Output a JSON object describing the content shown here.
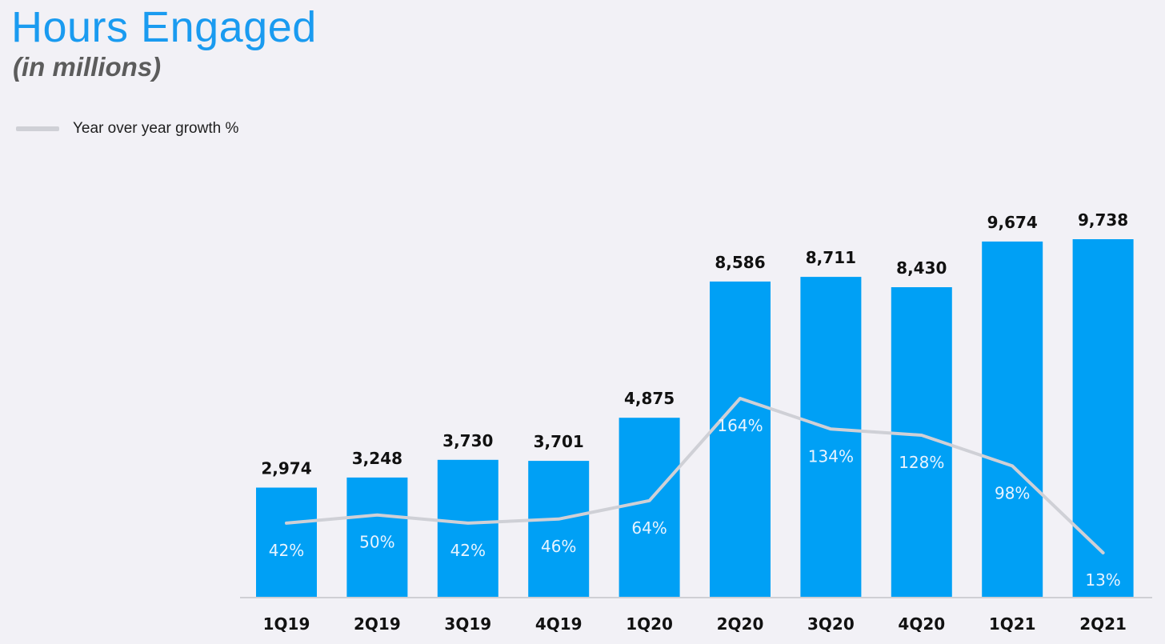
{
  "chart_data": {
    "type": "bar",
    "title": "Hours Engaged",
    "subtitle": "(in millions)",
    "categories": [
      "1Q19",
      "2Q19",
      "3Q19",
      "4Q19",
      "1Q20",
      "2Q20",
      "3Q20",
      "4Q20",
      "1Q21",
      "2Q21"
    ],
    "values": [
      2974,
      3248,
      3730,
      3701,
      4875,
      8586,
      8711,
      8430,
      9674,
      9738
    ],
    "value_labels": [
      "2,974",
      "3,248",
      "3,730",
      "3,701",
      "4,875",
      "8,586",
      "8,711",
      "8,430",
      "9,674",
      "9,738"
    ],
    "growth_series": {
      "name": "Year over year growth %",
      "type": "line",
      "values": [
        42,
        50,
        42,
        46,
        64,
        164,
        134,
        128,
        98,
        13
      ],
      "labels": [
        "42%",
        "50%",
        "42%",
        "46%",
        "64%",
        "164%",
        "134%",
        "128%",
        "98%",
        "13%"
      ]
    },
    "ylim": [
      0,
      10000
    ],
    "grid": false,
    "legend_position": "top-left",
    "colors": {
      "title": "#1a9bf0",
      "bars": "#00a0f5",
      "line": "#cfd0d6",
      "axis": "#cfcfd4"
    }
  }
}
